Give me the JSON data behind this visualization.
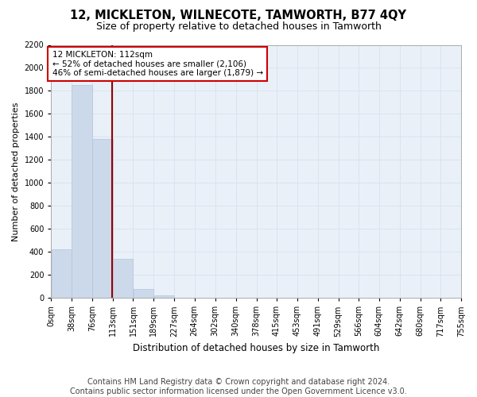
{
  "title": "12, MICKLETON, WILNECOTE, TAMWORTH, B77 4QY",
  "subtitle": "Size of property relative to detached houses in Tamworth",
  "xlabel": "Distribution of detached houses by size in Tamworth",
  "ylabel": "Number of detached properties",
  "bar_color": "#ccd9ea",
  "bar_edge_color": "#b0c4de",
  "grid_color": "#d8e4f0",
  "bg_color": "#eaf0f8",
  "vline_x": 112,
  "vline_color": "#990000",
  "annotation_text": "12 MICKLETON: 112sqm\n← 52% of detached houses are smaller (2,106)\n46% of semi-detached houses are larger (1,879) →",
  "annotation_box_color": "#ffffff",
  "annotation_border_color": "#cc0000",
  "bins": [
    0,
    38,
    76,
    113,
    151,
    189,
    227,
    264,
    302,
    340,
    378,
    415,
    453,
    491,
    529,
    566,
    604,
    642,
    680,
    717,
    755
  ],
  "bin_labels": [
    "0sqm",
    "38sqm",
    "76sqm",
    "113sqm",
    "151sqm",
    "189sqm",
    "227sqm",
    "264sqm",
    "302sqm",
    "340sqm",
    "378sqm",
    "415sqm",
    "453sqm",
    "491sqm",
    "529sqm",
    "566sqm",
    "604sqm",
    "642sqm",
    "680sqm",
    "717sqm",
    "755sqm"
  ],
  "counts": [
    420,
    1850,
    1380,
    340,
    75,
    25,
    0,
    0,
    0,
    0,
    0,
    0,
    0,
    0,
    0,
    0,
    0,
    0,
    0,
    0
  ],
  "ylim": [
    0,
    2200
  ],
  "yticks": [
    0,
    200,
    400,
    600,
    800,
    1000,
    1200,
    1400,
    1600,
    1800,
    2000,
    2200
  ],
  "footer_text": "Contains HM Land Registry data © Crown copyright and database right 2024.\nContains public sector information licensed under the Open Government Licence v3.0.",
  "footer_fontsize": 7.0,
  "title_fontsize": 10.5,
  "subtitle_fontsize": 9.0,
  "xlabel_fontsize": 8.5,
  "ylabel_fontsize": 8.0,
  "tick_fontsize": 7.0,
  "annot_fontsize": 7.5
}
